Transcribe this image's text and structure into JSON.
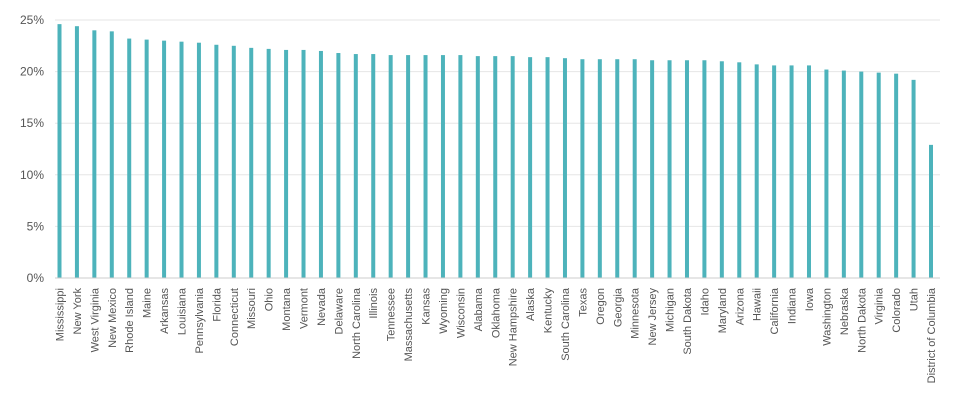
{
  "chart_data": {
    "type": "bar",
    "title": "",
    "xlabel": "",
    "ylabel": "",
    "ylim": [
      0,
      25
    ],
    "yticks": [
      0,
      5,
      10,
      15,
      20,
      25
    ],
    "ytick_labels": [
      "0%",
      "5%",
      "10%",
      "15%",
      "20%",
      "25%"
    ],
    "grid": true,
    "bar_color": "#4db3bb",
    "categories": [
      "Mississippi",
      "New York",
      "West Virginia",
      "New Mexico",
      "Rhode Island",
      "Maine",
      "Arkansas",
      "Louisiana",
      "Pennsylvania",
      "Florida",
      "Connecticut",
      "Missouri",
      "Ohio",
      "Montana",
      "Vermont",
      "Nevada",
      "Delaware",
      "North Carolina",
      "Illinois",
      "Tennessee",
      "Massachusetts",
      "Kansas",
      "Wyoming",
      "Wisconsin",
      "Alabama",
      "Oklahoma",
      "New Hampshire",
      "Alaska",
      "Kentucky",
      "South Carolina",
      "Texas",
      "Oregon",
      "Georgia",
      "Minnesota",
      "New Jersey",
      "Michigan",
      "South Dakota",
      "Idaho",
      "Maryland",
      "Arizona",
      "Hawaii",
      "California",
      "Indiana",
      "Iowa",
      "Washington",
      "Nebraska",
      "North Dakota",
      "Virginia",
      "Colorado",
      "Utah",
      "District of Columbia"
    ],
    "values": [
      24.6,
      24.4,
      24.0,
      23.9,
      23.2,
      23.1,
      23.0,
      22.9,
      22.8,
      22.6,
      22.5,
      22.3,
      22.2,
      22.1,
      22.1,
      22.0,
      21.8,
      21.7,
      21.7,
      21.6,
      21.6,
      21.6,
      21.6,
      21.6,
      21.5,
      21.5,
      21.5,
      21.4,
      21.4,
      21.3,
      21.2,
      21.2,
      21.2,
      21.2,
      21.1,
      21.1,
      21.1,
      21.1,
      21.0,
      20.9,
      20.7,
      20.6,
      20.6,
      20.6,
      20.2,
      20.1,
      20.0,
      19.9,
      19.8,
      19.2,
      12.9
    ]
  }
}
